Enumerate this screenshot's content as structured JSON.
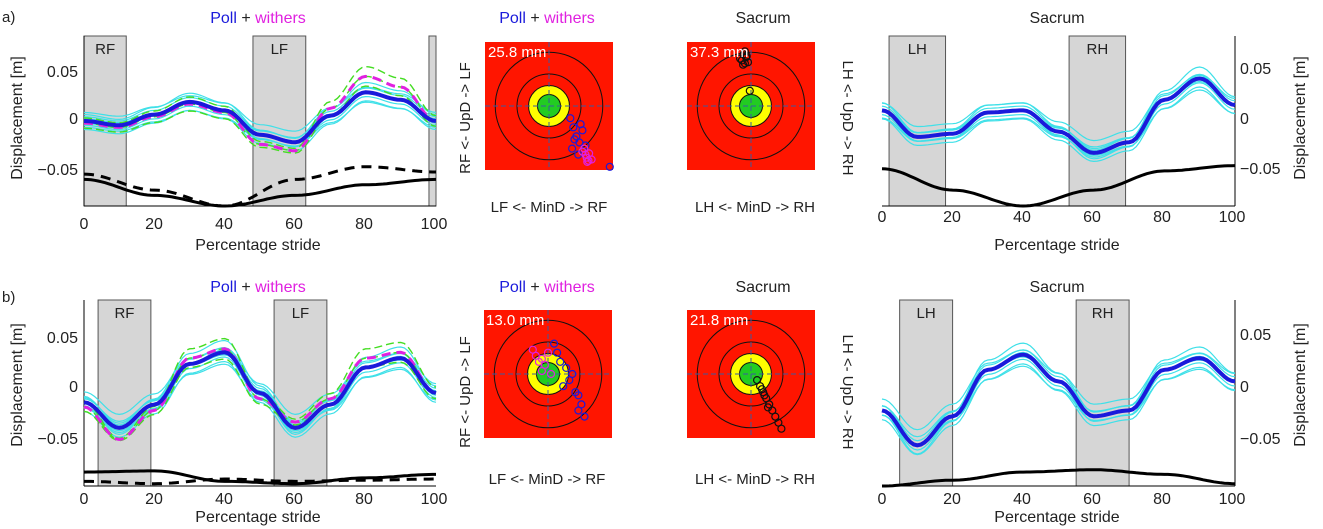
{
  "rows": [
    {
      "label": "a)",
      "poll_plot": {
        "title_poll": "Poll",
        "title_plus": " + ",
        "title_withers": "withers",
        "ylabel": "Displacement [m]",
        "xlabel": "Percentage stride",
        "xticks": [
          "0",
          "20",
          "40",
          "60",
          "80",
          "100"
        ],
        "yticks": [
          "0.05",
          "0",
          "−0.05"
        ],
        "bands": [
          {
            "label": "RF",
            "x0": 0,
            "x1": 12
          },
          {
            "label": "LF",
            "x0": 48,
            "x1": 63
          },
          {
            "label": "",
            "x0": 98,
            "x1": 100
          }
        ]
      },
      "target_poll": {
        "title_poll": "Poll",
        "title_plus": " + ",
        "title_withers": "withers",
        "value": "25.8 mm",
        "ylabel": "RF <- UpD -> LF",
        "xlabel": "LF  <- MinD ->  RF"
      },
      "target_sacrum": {
        "title": "Sacrum",
        "value": "37.3 mm",
        "ylabel": "LH <- UpD -> RH",
        "xlabel": "LH  <- MinD  -> RH"
      },
      "sacrum_plot": {
        "title": "Sacrum",
        "ylabel": "Displacement [m]",
        "xlabel": "Percentage stride",
        "xticks": [
          "0",
          "20",
          "40",
          "60",
          "80",
          "100"
        ],
        "yticks": [
          "0.05",
          "0",
          "−0.05"
        ],
        "bands": [
          {
            "label": "LH",
            "x0": 2,
            "x1": 18
          },
          {
            "label": "RH",
            "x0": 53,
            "x1": 69
          }
        ]
      }
    },
    {
      "label": "b)",
      "poll_plot": {
        "title_poll": "Poll",
        "title_plus": " + ",
        "title_withers": "withers",
        "ylabel": "Displacement [m]",
        "xlabel": "Percentage stride",
        "xticks": [
          "0",
          "20",
          "40",
          "60",
          "80",
          "100"
        ],
        "yticks": [
          "0.05",
          "0",
          "−0.05"
        ],
        "bands": [
          {
            "label": "RF",
            "x0": 4,
            "x1": 19
          },
          {
            "label": "LF",
            "x0": 54,
            "x1": 69
          }
        ]
      },
      "target_poll": {
        "title_poll": "Poll",
        "title_plus": " + ",
        "title_withers": "withers",
        "value": "13.0 mm",
        "ylabel": "RF <- UpD -> LF",
        "xlabel": "LF  <- MinD ->  RF"
      },
      "target_sacrum": {
        "title": "Sacrum",
        "value": "21.8 mm",
        "ylabel": "LH <- UpD -> RH",
        "xlabel": "LH <- MinD -> RH"
      },
      "sacrum_plot": {
        "title": "Sacrum",
        "ylabel": "Displacement [m]",
        "xlabel": "Percentage stride",
        "xticks": [
          "0",
          "20",
          "40",
          "60",
          "80",
          "100"
        ],
        "yticks": [
          "0.05",
          "0",
          "−0.05"
        ],
        "bands": [
          {
            "label": "LH",
            "x0": 5,
            "x1": 20
          },
          {
            "label": "RH",
            "x0": 55,
            "x1": 70
          }
        ]
      }
    }
  ],
  "colors": {
    "poll": "#1a1adb",
    "withers": "#e020e0",
    "cyan": "#3fe0e8",
    "green": "#44dd22",
    "band": "#d6d6d6",
    "target_red": "#ff1500",
    "target_yellow": "#ffff00",
    "target_green": "#22cc22",
    "black": "#000000"
  },
  "chart_data": [
    {
      "type": "line",
      "panel": "a-poll-withers",
      "xlim": [
        0,
        100
      ],
      "ylim": [
        -0.08,
        0.08
      ],
      "series": [
        {
          "role": "poll-mean",
          "x": [
            0,
            10,
            20,
            30,
            40,
            50,
            60,
            70,
            80,
            90,
            100
          ],
          "values": [
            0,
            -0.004,
            0.006,
            0.018,
            0.01,
            -0.013,
            -0.02,
            0.005,
            0.027,
            0.02,
            0
          ]
        },
        {
          "role": "withers-mean",
          "x": [
            0,
            10,
            20,
            30,
            40,
            50,
            60,
            70,
            80,
            90,
            100
          ],
          "values": [
            -0.002,
            -0.006,
            0.004,
            0.016,
            0.008,
            -0.022,
            -0.028,
            0.012,
            0.042,
            0.032,
            0
          ]
        },
        {
          "role": "black-solid",
          "x": [
            0,
            20,
            40,
            60,
            80,
            100
          ],
          "values": [
            -0.055,
            -0.07,
            -0.08,
            -0.07,
            -0.06,
            -0.055
          ]
        },
        {
          "role": "black-dashed",
          "x": [
            0,
            20,
            40,
            60,
            80,
            100
          ],
          "values": [
            -0.05,
            -0.065,
            -0.08,
            -0.055,
            -0.043,
            -0.048
          ]
        }
      ]
    },
    {
      "type": "scatter",
      "panel": "a-poll-target",
      "xlim": [
        -1,
        1
      ],
      "ylim": [
        -1,
        1
      ],
      "series": [
        {
          "role": "poll",
          "x": [
            0.35,
            0.4,
            0.45,
            0.5,
            0.55,
            0.38,
            0.42,
            0.6,
            0.48,
            0.52,
            1.0
          ],
          "values": [
            -0.2,
            -0.35,
            -0.5,
            -0.6,
            -0.4,
            -0.7,
            -0.55,
            -0.65,
            -0.8,
            -0.3,
            -1.0
          ]
        },
        {
          "role": "withers",
          "x": [
            0.55,
            0.6,
            0.62,
            0.65,
            0.58,
            0.7,
            0.66,
            0.63
          ],
          "values": [
            -0.75,
            -0.8,
            -0.85,
            -0.9,
            -0.7,
            -0.88,
            -0.78,
            -0.92
          ]
        }
      ]
    },
    {
      "type": "scatter",
      "panel": "a-sacrum-target",
      "xlim": [
        -1,
        1
      ],
      "ylim": [
        -1,
        1
      ],
      "series": [
        {
          "role": "sacrum",
          "x": [
            -0.1,
            -0.15,
            -0.08,
            -0.12,
            -0.05,
            -0.18,
            -0.1,
            -0.13,
            -0.07,
            -0.02
          ],
          "values": [
            0.7,
            0.75,
            0.8,
            0.85,
            0.72,
            0.78,
            0.9,
            0.68,
            0.82,
            0.25
          ]
        }
      ]
    },
    {
      "type": "line",
      "panel": "a-sacrum",
      "xlim": [
        0,
        100
      ],
      "ylim": [
        -0.08,
        0.08
      ],
      "series": [
        {
          "role": "sacrum-mean",
          "x": [
            0,
            10,
            20,
            30,
            40,
            50,
            60,
            70,
            80,
            90,
            100
          ],
          "values": [
            0.01,
            -0.015,
            -0.012,
            0.008,
            0.01,
            -0.01,
            -0.03,
            -0.02,
            0.02,
            0.04,
            0.015
          ]
        },
        {
          "role": "black-solid",
          "x": [
            0,
            20,
            40,
            60,
            80,
            100
          ],
          "values": [
            -0.045,
            -0.065,
            -0.08,
            -0.065,
            -0.047,
            -0.042
          ]
        }
      ]
    },
    {
      "type": "line",
      "panel": "b-poll-withers",
      "xlim": [
        0,
        100
      ],
      "ylim": [
        -0.08,
        0.08
      ],
      "series": [
        {
          "role": "poll-mean",
          "x": [
            0,
            10,
            20,
            30,
            40,
            50,
            60,
            70,
            80,
            90,
            100
          ],
          "values": [
            -0.008,
            -0.03,
            -0.01,
            0.025,
            0.035,
            0.0,
            -0.03,
            -0.01,
            0.022,
            0.03,
            0.0
          ]
        },
        {
          "role": "withers-mean",
          "x": [
            0,
            10,
            20,
            30,
            40,
            50,
            60,
            70,
            80,
            90,
            100
          ],
          "values": [
            -0.012,
            -0.04,
            -0.015,
            0.03,
            0.038,
            -0.005,
            -0.025,
            -0.005,
            0.03,
            0.035,
            0.0
          ]
        },
        {
          "role": "black-solid",
          "x": [
            0,
            20,
            40,
            60,
            80,
            100
          ],
          "values": [
            -0.068,
            -0.067,
            -0.076,
            -0.078,
            -0.073,
            -0.07
          ]
        },
        {
          "role": "black-dashed",
          "x": [
            0,
            20,
            40,
            60,
            80,
            100
          ],
          "values": [
            -0.076,
            -0.078,
            -0.074,
            -0.076,
            -0.075,
            -0.074
          ]
        }
      ]
    },
    {
      "type": "scatter",
      "panel": "b-poll-target",
      "xlim": [
        -1,
        1
      ],
      "ylim": [
        -1,
        1
      ],
      "series": [
        {
          "role": "poll",
          "x": [
            0.2,
            0.3,
            0.4,
            0.35,
            0.25,
            0.45,
            0.5,
            0.15,
            0.55,
            0.6,
            0.1,
            0.5
          ],
          "values": [
            0.2,
            0.1,
            0.0,
            -0.1,
            -0.2,
            -0.3,
            -0.35,
            0.35,
            -0.5,
            -0.7,
            0.5,
            -0.6
          ]
        },
        {
          "role": "withers",
          "x": [
            -0.2,
            -0.1,
            -0.15,
            -0.05,
            0.0,
            -0.25,
            -0.1,
            0.05
          ],
          "values": [
            0.3,
            0.25,
            0.2,
            0.15,
            0.35,
            0.4,
            0.05,
            0.0
          ]
        }
      ]
    },
    {
      "type": "scatter",
      "panel": "b-sacrum-target",
      "xlim": [
        -1,
        1
      ],
      "ylim": [
        -1,
        1
      ],
      "series": [
        {
          "role": "sacrum",
          "x": [
            0.1,
            0.15,
            0.2,
            0.25,
            0.3,
            0.35,
            0.18,
            0.22,
            0.28,
            0.4,
            0.45,
            0.5
          ],
          "values": [
            -0.1,
            -0.2,
            -0.3,
            -0.4,
            -0.5,
            -0.6,
            -0.25,
            -0.35,
            -0.55,
            -0.7,
            -0.8,
            -0.9
          ]
        }
      ]
    },
    {
      "type": "line",
      "panel": "b-sacrum",
      "xlim": [
        0,
        100
      ],
      "ylim": [
        -0.08,
        0.08
      ],
      "series": [
        {
          "role": "sacrum-mean",
          "x": [
            0,
            10,
            20,
            30,
            40,
            50,
            60,
            70,
            80,
            90,
            100
          ],
          "values": [
            -0.015,
            -0.045,
            -0.02,
            0.02,
            0.033,
            0.01,
            -0.02,
            -0.015,
            0.02,
            0.03,
            0.01
          ]
        },
        {
          "role": "black-solid",
          "x": [
            0,
            20,
            40,
            60,
            80,
            100
          ],
          "values": [
            -0.08,
            -0.075,
            -0.068,
            -0.066,
            -0.07,
            -0.078
          ]
        }
      ]
    }
  ]
}
